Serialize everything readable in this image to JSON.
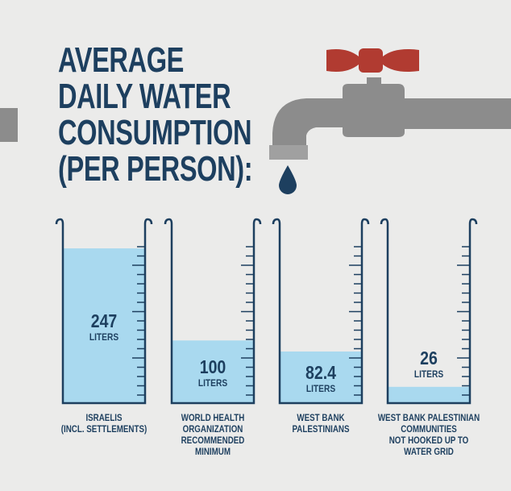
{
  "chart_data": {
    "type": "bar",
    "title": "AVERAGE\nDAILY WATER\nCONSUMPTION\n(PER PERSON):",
    "categories": [
      "ISRAELIS\n(INCL. SETTLEMENTS)",
      "WORLD HEALTH\nORGANIZATION\nRECOMMENDED\nMINIMUM",
      "WEST BANK\nPALESTINIANS",
      "WEST BANK PALESTINIAN\nCOMMUNITIES\nNOT HOOKED UP TO\nWATER GRID"
    ],
    "values": [
      247,
      100,
      82.4,
      26
    ],
    "unit": "LITERS",
    "color": "#a9d9ef"
  }
}
